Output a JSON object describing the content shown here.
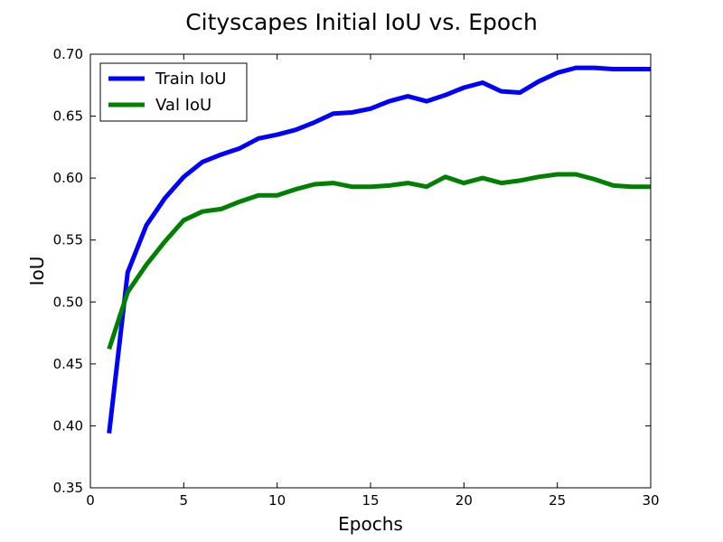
{
  "chart_data": {
    "type": "line",
    "title": "Cityscapes Initial IoU vs. Epoch",
    "xlabel": "Epochs",
    "ylabel": "IoU",
    "xlim": [
      0,
      30
    ],
    "ylim": [
      0.35,
      0.7
    ],
    "x_ticks": [
      0,
      5,
      10,
      15,
      20,
      25,
      30
    ],
    "x_tick_labels": [
      "0",
      "5",
      "10",
      "15",
      "20",
      "25",
      "30"
    ],
    "y_ticks": [
      0.35,
      0.4,
      0.45,
      0.5,
      0.55,
      0.6,
      0.65,
      0.7
    ],
    "y_tick_labels": [
      "0.35",
      "0.40",
      "0.45",
      "0.50",
      "0.55",
      "0.60",
      "0.65",
      "0.70"
    ],
    "grid": false,
    "legend_position": "top-left",
    "x": [
      1,
      2,
      3,
      4,
      5,
      6,
      7,
      8,
      9,
      10,
      11,
      12,
      13,
      14,
      15,
      16,
      17,
      18,
      19,
      20,
      21,
      22,
      23,
      24,
      25,
      26,
      27,
      28,
      29,
      30
    ],
    "series": [
      {
        "name": "Train IoU",
        "color": "#0000ff",
        "values": [
          0.394,
          0.524,
          0.562,
          0.584,
          0.601,
          0.613,
          0.619,
          0.624,
          0.632,
          0.635,
          0.639,
          0.645,
          0.652,
          0.653,
          0.656,
          0.662,
          0.666,
          0.662,
          0.667,
          0.673,
          0.677,
          0.67,
          0.669,
          0.678,
          0.685,
          0.689,
          0.689,
          0.688,
          0.688,
          0.688
        ]
      },
      {
        "name": "Val IoU",
        "color": "#008000",
        "values": [
          0.462,
          0.508,
          0.53,
          0.549,
          0.566,
          0.573,
          0.575,
          0.581,
          0.586,
          0.586,
          0.591,
          0.595,
          0.596,
          0.593,
          0.593,
          0.594,
          0.596,
          0.593,
          0.601,
          0.596,
          0.6,
          0.596,
          0.598,
          0.601,
          0.603,
          0.603,
          0.599,
          0.594,
          0.593,
          0.593
        ]
      }
    ]
  }
}
